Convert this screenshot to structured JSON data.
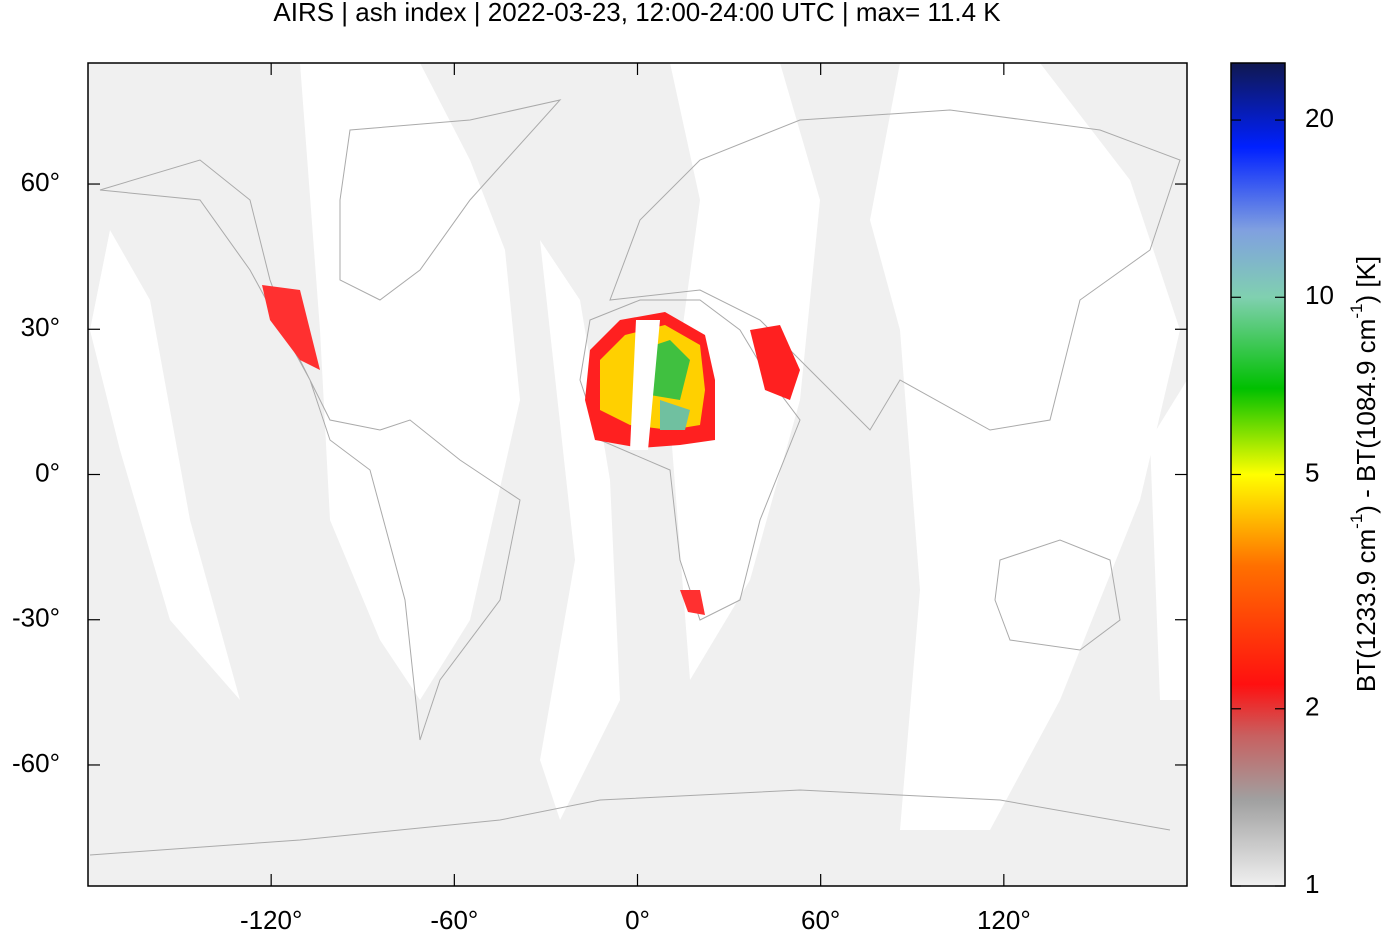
{
  "chart_data": {
    "type": "map",
    "title": "AIRS | ash index | 2022-03-23, 12:00-24:00 UTC | max= 11.4 K",
    "xlim": [
      -180,
      180
    ],
    "ylim": [
      -85,
      85
    ],
    "xticks": [
      {
        "value": -120,
        "label": "-120°"
      },
      {
        "value": -60,
        "label": "-60°"
      },
      {
        "value": 0,
        "label": "0°"
      },
      {
        "value": 60,
        "label": "60°"
      },
      {
        "value": 120,
        "label": "120°"
      }
    ],
    "yticks": [
      {
        "value": -60,
        "label": "-60°"
      },
      {
        "value": -30,
        "label": "-30°"
      },
      {
        "value": 0,
        "label": "0°"
      },
      {
        "value": 30,
        "label": "30°"
      },
      {
        "value": 60,
        "label": "60°"
      }
    ],
    "colorbar": {
      "clim": [
        1,
        25
      ],
      "log_scale": true,
      "ticks": [
        1,
        2,
        5,
        10,
        20
      ],
      "label_parts": [
        "BT(1233.9 cm",
        "-1",
        ") - BT(1084.9 cm",
        "-1",
        ") [K]"
      ],
      "colormap": [
        {
          "value": 1,
          "color": "#f0f0f0"
        },
        {
          "value": 1.4,
          "color": "#a0a0a0"
        },
        {
          "value": 1.8,
          "color": "#c86060"
        },
        {
          "value": 2.2,
          "color": "#ff1010"
        },
        {
          "value": 3.5,
          "color": "#ff7000"
        },
        {
          "value": 5,
          "color": "#ffff00"
        },
        {
          "value": 7,
          "color": "#00c000"
        },
        {
          "value": 10,
          "color": "#80d0b0"
        },
        {
          "value": 13,
          "color": "#80a0e0"
        },
        {
          "value": 18,
          "color": "#0020ff"
        },
        {
          "value": 25,
          "color": "#101850"
        }
      ]
    }
  }
}
